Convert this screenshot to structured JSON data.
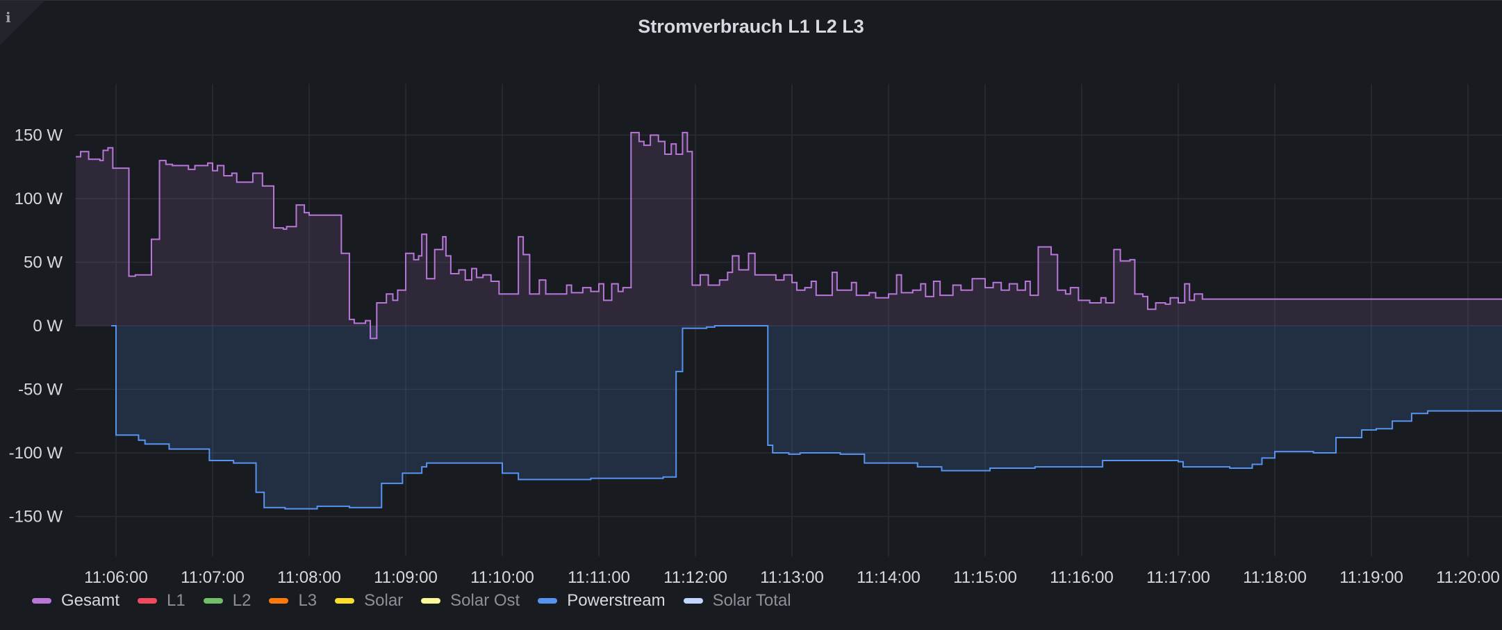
{
  "panel": {
    "title": "Stromverbrauch L1 L2 L3",
    "info_icon": "info-icon",
    "info_glyph": "i"
  },
  "chart_data": {
    "type": "area",
    "title": "Stromverbrauch L1 L2 L3",
    "xlabel": "",
    "ylabel": "",
    "unit": "W",
    "ylim": [
      -170,
      180
    ],
    "xlim": [
      "11:05:35",
      "11:20:25"
    ],
    "grid": true,
    "legend_position": "bottom-left",
    "y_ticks": [
      {
        "value": 150,
        "label": "150 W"
      },
      {
        "value": 100,
        "label": "100 W"
      },
      {
        "value": 50,
        "label": "50 W"
      },
      {
        "value": 0,
        "label": "0 W"
      },
      {
        "value": -50,
        "label": "-50 W"
      },
      {
        "value": -100,
        "label": "-100 W"
      },
      {
        "value": -150,
        "label": "-150 W"
      }
    ],
    "x_ticks": [
      "11:06:00",
      "11:07:00",
      "11:08:00",
      "11:09:00",
      "11:10:00",
      "11:11:00",
      "11:12:00",
      "11:13:00",
      "11:14:00",
      "11:15:00",
      "11:16:00",
      "11:17:00",
      "11:18:00",
      "11:19:00",
      "11:20:00"
    ],
    "series": [
      {
        "name": "Gesamt",
        "color": "#b877d9",
        "points": [
          [
            "11:05:35",
            133
          ],
          [
            "11:05:38",
            137
          ],
          [
            "11:05:43",
            131
          ],
          [
            "11:05:50",
            130
          ],
          [
            "11:05:52",
            138
          ],
          [
            "11:05:55",
            140
          ],
          [
            "11:05:58",
            124
          ],
          [
            "11:06:08",
            39
          ],
          [
            "11:06:12",
            40
          ],
          [
            "11:06:22",
            68
          ],
          [
            "11:06:27",
            130
          ],
          [
            "11:06:31",
            127
          ],
          [
            "11:06:35",
            126
          ],
          [
            "11:06:45",
            123
          ],
          [
            "11:06:49",
            126
          ],
          [
            "11:06:57",
            128
          ],
          [
            "11:07:00",
            122
          ],
          [
            "11:07:03",
            126
          ],
          [
            "11:07:07",
            118
          ],
          [
            "11:07:12",
            120
          ],
          [
            "11:07:15",
            113
          ],
          [
            "11:07:25",
            120
          ],
          [
            "11:07:31",
            110
          ],
          [
            "11:07:38",
            77
          ],
          [
            "11:07:44",
            76
          ],
          [
            "11:07:46",
            78
          ],
          [
            "11:07:52",
            95
          ],
          [
            "11:07:57",
            89
          ],
          [
            "11:08:00",
            87
          ],
          [
            "11:08:20",
            57
          ],
          [
            "11:08:25",
            5
          ],
          [
            "11:08:28",
            2
          ],
          [
            "11:08:35",
            4
          ],
          [
            "11:08:38",
            -10
          ],
          [
            "11:08:42",
            18
          ],
          [
            "11:08:48",
            25
          ],
          [
            "11:08:52",
            20
          ],
          [
            "11:08:55",
            28
          ],
          [
            "11:09:00",
            57
          ],
          [
            "11:09:05",
            52
          ],
          [
            "11:09:08",
            55
          ],
          [
            "11:09:10",
            72
          ],
          [
            "11:09:13",
            37
          ],
          [
            "11:09:18",
            60
          ],
          [
            "11:09:23",
            70
          ],
          [
            "11:09:25",
            55
          ],
          [
            "11:09:28",
            41
          ],
          [
            "11:09:33",
            44
          ],
          [
            "11:09:37",
            36
          ],
          [
            "11:09:41",
            45
          ],
          [
            "11:09:44",
            38
          ],
          [
            "11:09:48",
            40
          ],
          [
            "11:09:53",
            35
          ],
          [
            "11:09:58",
            25
          ],
          [
            "11:10:10",
            70
          ],
          [
            "11:10:13",
            56
          ],
          [
            "11:10:17",
            25
          ],
          [
            "11:10:23",
            36
          ],
          [
            "11:10:27",
            25
          ],
          [
            "11:10:40",
            32
          ],
          [
            "11:10:43",
            26
          ],
          [
            "11:10:50",
            30
          ],
          [
            "11:10:55",
            27
          ],
          [
            "11:11:00",
            33
          ],
          [
            "11:11:03",
            20
          ],
          [
            "11:11:08",
            33
          ],
          [
            "11:11:12",
            27
          ],
          [
            "11:11:15",
            30
          ],
          [
            "11:11:20",
            152
          ],
          [
            "11:11:25",
            145
          ],
          [
            "11:11:28",
            142
          ],
          [
            "11:11:32",
            150
          ],
          [
            "11:11:37",
            145
          ],
          [
            "11:11:41",
            135
          ],
          [
            "11:11:45",
            143
          ],
          [
            "11:11:48",
            135
          ],
          [
            "11:11:52",
            152
          ],
          [
            "11:11:55",
            137
          ],
          [
            "11:11:58",
            32
          ],
          [
            "11:12:03",
            40
          ],
          [
            "11:12:08",
            32
          ],
          [
            "11:12:15",
            36
          ],
          [
            "11:12:20",
            42
          ],
          [
            "11:12:23",
            55
          ],
          [
            "11:12:27",
            44
          ],
          [
            "11:12:33",
            57
          ],
          [
            "11:12:37",
            40
          ],
          [
            "11:12:50",
            36
          ],
          [
            "11:12:55",
            40
          ],
          [
            "11:13:00",
            34
          ],
          [
            "11:13:03",
            28
          ],
          [
            "11:13:08",
            30
          ],
          [
            "11:13:12",
            35
          ],
          [
            "11:13:15",
            24
          ],
          [
            "11:13:25",
            42
          ],
          [
            "11:13:28",
            28
          ],
          [
            "11:13:37",
            34
          ],
          [
            "11:13:40",
            24
          ],
          [
            "11:13:48",
            26
          ],
          [
            "11:13:52",
            22
          ],
          [
            "11:14:00",
            25
          ],
          [
            "11:14:05",
            40
          ],
          [
            "11:14:08",
            26
          ],
          [
            "11:14:15",
            28
          ],
          [
            "11:14:20",
            33
          ],
          [
            "11:14:23",
            23
          ],
          [
            "11:14:28",
            35
          ],
          [
            "11:14:32",
            24
          ],
          [
            "11:14:40",
            32
          ],
          [
            "11:14:45",
            28
          ],
          [
            "11:14:52",
            37
          ],
          [
            "11:15:00",
            30
          ],
          [
            "11:15:05",
            34
          ],
          [
            "11:15:10",
            28
          ],
          [
            "11:15:15",
            33
          ],
          [
            "11:15:20",
            28
          ],
          [
            "11:15:25",
            35
          ],
          [
            "11:15:28",
            24
          ],
          [
            "11:15:33",
            62
          ],
          [
            "11:15:41",
            56
          ],
          [
            "11:15:45",
            28
          ],
          [
            "11:15:50",
            25
          ],
          [
            "11:15:53",
            30
          ],
          [
            "11:15:58",
            20
          ],
          [
            "11:16:05",
            18
          ],
          [
            "11:16:12",
            22
          ],
          [
            "11:16:15",
            18
          ],
          [
            "11:16:20",
            60
          ],
          [
            "11:16:24",
            51
          ],
          [
            "11:16:30",
            52
          ],
          [
            "11:16:33",
            25
          ],
          [
            "11:16:38",
            23
          ],
          [
            "11:16:41",
            13
          ],
          [
            "11:16:46",
            18
          ],
          [
            "11:16:52",
            17
          ],
          [
            "11:16:55",
            22
          ],
          [
            "11:17:00",
            18
          ],
          [
            "11:17:04",
            33
          ],
          [
            "11:17:07",
            20
          ],
          [
            "11:17:10",
            25
          ],
          [
            "11:17:15",
            21
          ]
        ]
      },
      {
        "name": "L1",
        "color": "#f2495c",
        "points": []
      },
      {
        "name": "L2",
        "color": "#73bf69",
        "points": []
      },
      {
        "name": "L3",
        "color": "#ff780a",
        "points": []
      },
      {
        "name": "Solar",
        "color": "#fade2a",
        "points": []
      },
      {
        "name": "Solar Ost",
        "color": "#fff899",
        "points": []
      },
      {
        "name": "Powerstream",
        "color": "#5794f2",
        "points": [
          [
            "11:05:57",
            0
          ],
          [
            "11:06:00",
            -86
          ],
          [
            "11:06:14",
            -90
          ],
          [
            "11:06:18",
            -93
          ],
          [
            "11:06:33",
            -97
          ],
          [
            "11:06:58",
            -106
          ],
          [
            "11:07:13",
            -108
          ],
          [
            "11:07:27",
            -131
          ],
          [
            "11:07:32",
            -143
          ],
          [
            "11:07:45",
            -144
          ],
          [
            "11:08:05",
            -142
          ],
          [
            "11:08:25",
            -143
          ],
          [
            "11:08:45",
            -124
          ],
          [
            "11:08:58",
            -116
          ],
          [
            "11:09:10",
            -111
          ],
          [
            "11:09:13",
            -108
          ],
          [
            "11:09:52",
            -108
          ],
          [
            "11:10:00",
            -116
          ],
          [
            "11:10:10",
            -121
          ],
          [
            "11:10:55",
            -120
          ],
          [
            "11:11:25",
            -120
          ],
          [
            "11:11:40",
            -119
          ],
          [
            "11:11:48",
            -36
          ],
          [
            "11:11:52",
            -2
          ],
          [
            "11:12:07",
            -1
          ],
          [
            "11:12:12",
            0
          ],
          [
            "11:12:43",
            0
          ],
          [
            "11:12:45",
            -94
          ],
          [
            "11:12:48",
            -100
          ],
          [
            "11:12:58",
            -101
          ],
          [
            "11:13:05",
            -100
          ],
          [
            "11:13:30",
            -101
          ],
          [
            "11:13:45",
            -108
          ],
          [
            "11:14:18",
            -111
          ],
          [
            "11:14:33",
            -114
          ],
          [
            "11:15:03",
            -112
          ],
          [
            "11:15:31",
            -111
          ],
          [
            "11:16:13",
            -106
          ],
          [
            "11:17:00",
            -107
          ],
          [
            "11:17:03",
            -111
          ],
          [
            "11:17:32",
            -112
          ],
          [
            "11:17:46",
            -109
          ],
          [
            "11:17:52",
            -104
          ],
          [
            "11:18:00",
            -99
          ],
          [
            "11:18:24",
            -100
          ],
          [
            "11:18:38",
            -88
          ],
          [
            "11:18:54",
            -82
          ],
          [
            "11:19:03",
            -81
          ],
          [
            "11:19:13",
            -75
          ],
          [
            "11:19:25",
            -69
          ],
          [
            "11:19:35",
            -67
          ]
        ]
      },
      {
        "name": "Solar Total",
        "color": "#c0d8ff",
        "points": []
      }
    ]
  }
}
